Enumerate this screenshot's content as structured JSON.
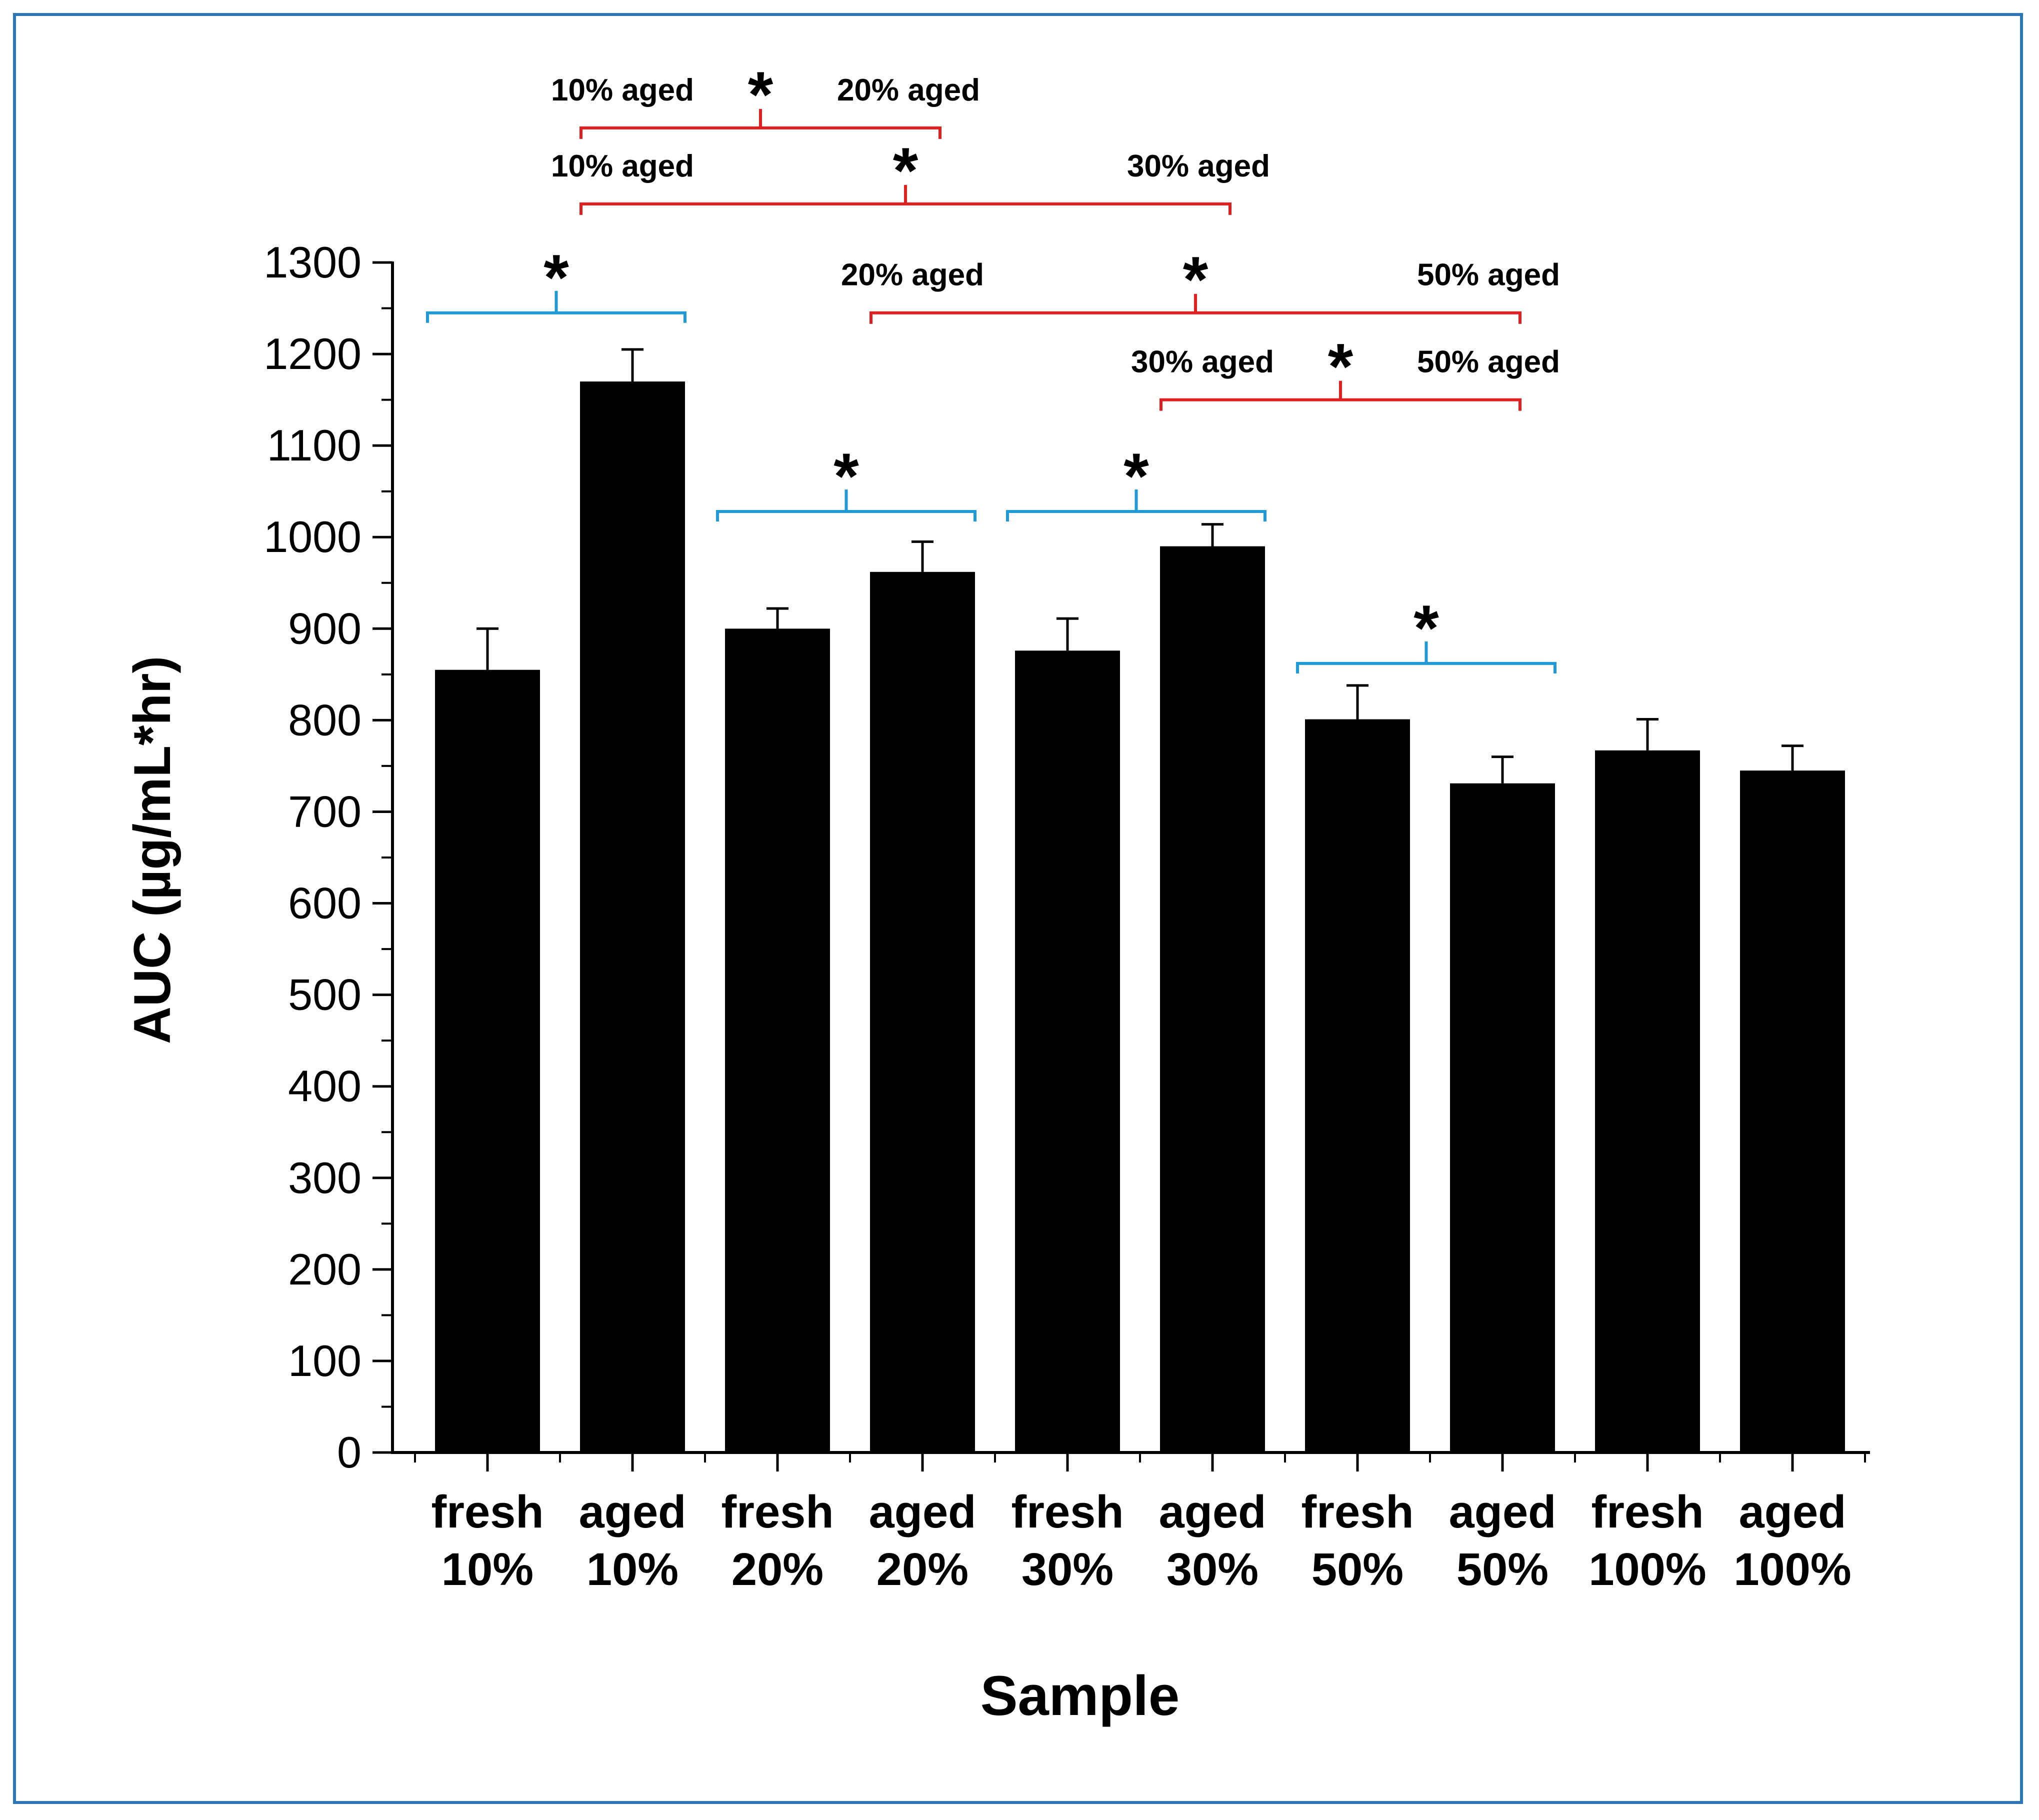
{
  "chart_data": {
    "type": "bar",
    "xlabel": "Sample",
    "ylabel": "AUC (µg/mL*hr)",
    "ylim": [
      0,
      1300
    ],
    "yticks": [
      "0",
      "100",
      "200",
      "300",
      "400",
      "500",
      "600",
      "700",
      "800",
      "900",
      "1000",
      "1100",
      "1200",
      "1300"
    ],
    "categories": [
      [
        "fresh",
        "10%"
      ],
      [
        "aged",
        "10%"
      ],
      [
        "fresh",
        "20%"
      ],
      [
        "aged",
        "20%"
      ],
      [
        "fresh",
        "30%"
      ],
      [
        "aged",
        "30%"
      ],
      [
        "fresh",
        "50%"
      ],
      [
        "aged",
        "50%"
      ],
      [
        "fresh",
        "100%"
      ],
      [
        "aged",
        "100%"
      ]
    ],
    "values": [
      855,
      1170,
      900,
      962,
      876,
      990,
      801,
      731,
      767,
      745
    ],
    "errors": [
      45,
      35,
      22,
      33,
      35,
      24,
      37,
      29,
      34,
      27
    ],
    "bar_color": "#000000",
    "brackets": [
      {
        "from": 0,
        "to": 1,
        "y": 1245,
        "label": "*",
        "color": "#1f9ad6"
      },
      {
        "from": 2,
        "to": 3,
        "y": 1028,
        "label": "*",
        "color": "#1f9ad6"
      },
      {
        "from": 4,
        "to": 5,
        "y": 1028,
        "label": "*",
        "color": "#1f9ad6"
      },
      {
        "from": 6,
        "to": 7,
        "y": 862,
        "label": "*",
        "color": "#1f9ad6"
      }
    ],
    "comparisons": [
      {
        "from": 1,
        "to": 3,
        "y": 1447,
        "left": "10% aged",
        "right": "20% aged",
        "label": "*",
        "color": "#e02020"
      },
      {
        "from": 1,
        "to": 5,
        "y": 1364,
        "left": "10% aged",
        "right": "30% aged",
        "label": "*",
        "color": "#e02020"
      },
      {
        "from": 3,
        "to": 7,
        "y": 1245,
        "left": "20% aged",
        "right": "50% aged",
        "label": "*",
        "color": "#e02020"
      },
      {
        "from": 5,
        "to": 7,
        "y": 1150,
        "left": "30% aged",
        "right": "50% aged",
        "label": "*",
        "color": "#e02020"
      }
    ]
  }
}
